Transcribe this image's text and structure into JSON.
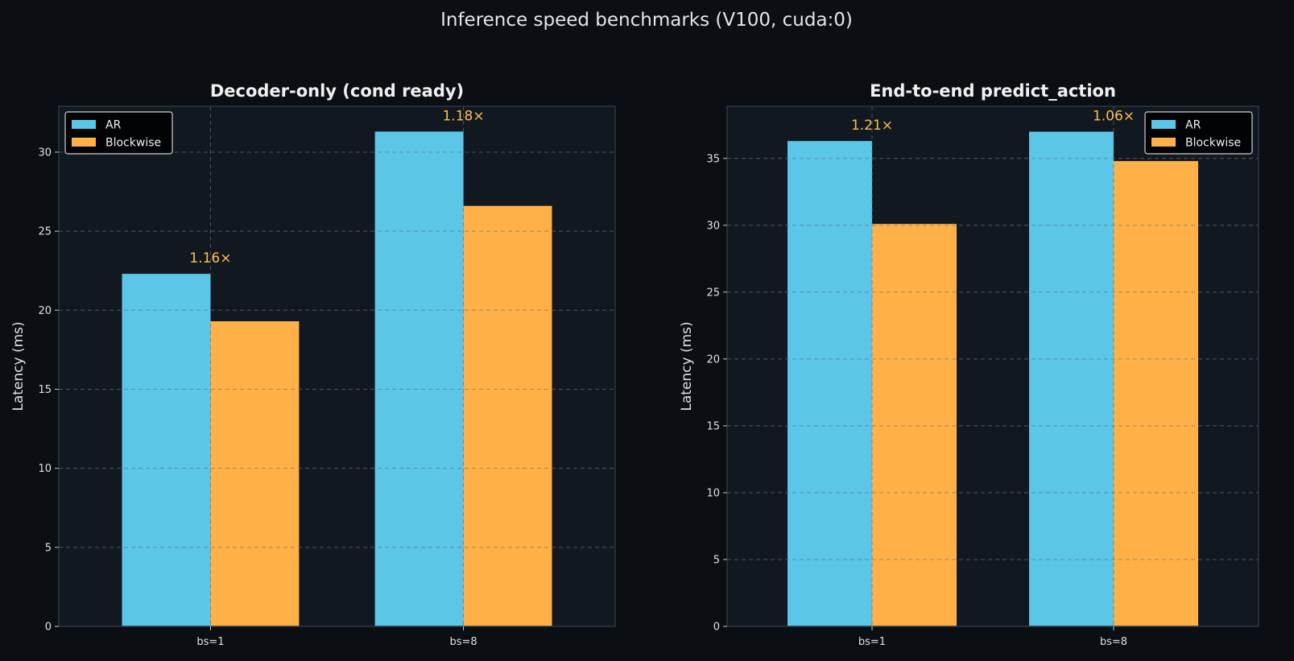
{
  "figure": {
    "title": "Inference speed benchmarks (V100, cuda:0)",
    "background": "#0b0e13",
    "axes_background": "#121820",
    "text_color": "#e6e6e6"
  },
  "chart_data": [
    {
      "type": "bar",
      "title": "Decoder-only (cond ready)",
      "xlabel": "",
      "ylabel": "Latency (ms)",
      "categories": [
        "bs=1",
        "bs=8"
      ],
      "series": [
        {
          "name": "AR",
          "color": "#5bc6e8",
          "values": [
            22.3,
            31.3
          ]
        },
        {
          "name": "Blockwise",
          "color": "#ffb147",
          "values": [
            19.3,
            26.6
          ]
        }
      ],
      "annotations": [
        "1.16×",
        "1.18×"
      ],
      "annotation_color": "#ffc04d",
      "ylim": [
        0,
        32.9
      ],
      "yticks": [
        0,
        5,
        10,
        15,
        20,
        25,
        30
      ],
      "grid": true,
      "legend": "upper-left"
    },
    {
      "type": "bar",
      "title": "End-to-end predict_action",
      "xlabel": "",
      "ylabel": "Latency (ms)",
      "categories": [
        "bs=1",
        "bs=8"
      ],
      "series": [
        {
          "name": "AR",
          "color": "#5bc6e8",
          "values": [
            36.3,
            37.0
          ]
        },
        {
          "name": "Blockwise",
          "color": "#ffb147",
          "values": [
            30.1,
            34.8
          ]
        }
      ],
      "annotations": [
        "1.21×",
        "1.06×"
      ],
      "annotation_color": "#ffc04d",
      "ylim": [
        0,
        38.9
      ],
      "yticks": [
        0,
        5,
        10,
        15,
        20,
        25,
        30,
        35
      ],
      "grid": true,
      "legend": "upper-right"
    }
  ]
}
